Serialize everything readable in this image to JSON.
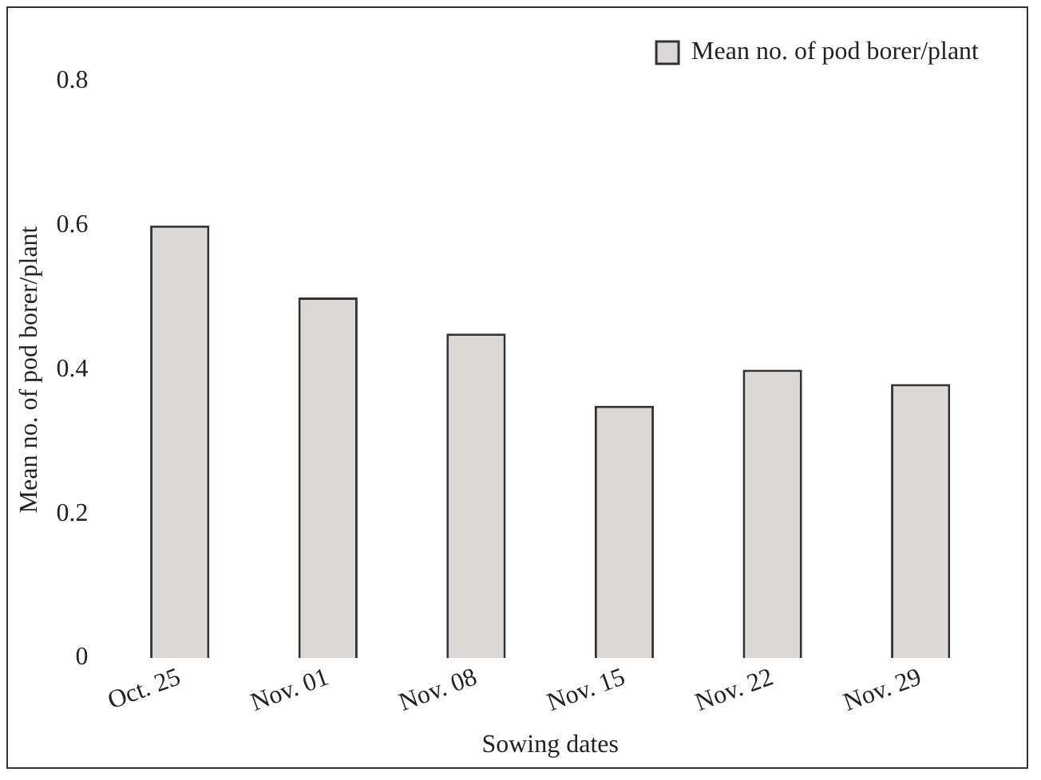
{
  "chart_data": {
    "type": "bar",
    "xlabel": "Sowing dates",
    "ylabel": "Mean no. of pod borer/plant",
    "categories": [
      "Oct. 25",
      "Nov. 01",
      "Nov. 08",
      "Nov. 15",
      "Nov. 22",
      "Nov. 29"
    ],
    "series": [
      {
        "name": "Mean no. of pod borer/plant",
        "color": "#dcd8d6",
        "values": [
          0.6,
          0.5,
          0.45,
          0.35,
          0.4,
          0.38
        ]
      }
    ],
    "ylim": [
      0,
      0.8
    ],
    "yticks": [
      0,
      0.2,
      0.4,
      0.6,
      0.8
    ],
    "grid": false,
    "legend": "top right"
  }
}
